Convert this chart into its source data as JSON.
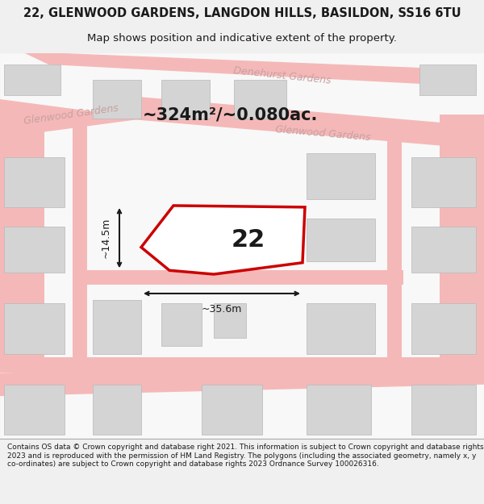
{
  "title_line1": "22, GLENWOOD GARDENS, LANGDON HILLS, BASILDON, SS16 6TU",
  "title_line2": "Map shows position and indicative extent of the property.",
  "area_text": "~324m²/~0.080ac.",
  "width_label": "~35.6m",
  "height_label": "~14.5m",
  "plot_number": "22",
  "footer_text": "Contains OS data © Crown copyright and database right 2021. This information is subject to Crown copyright and database rights 2023 and is reproduced with the permission of HM Land Registry. The polygons (including the associated geometry, namely x, y co-ordinates) are subject to Crown copyright and database rights 2023 Ordnance Survey 100026316.",
  "bg_color": "#f0f0f0",
  "map_bg": "#f8f8f8",
  "road_color": "#f5b8b8",
  "building_color": "#d4d4d4",
  "plot_outline_color": "#cc0000",
  "dim_line_color": "#1a1a1a",
  "text_color": "#1a1a1a",
  "road_label_color": "#c8a0a0",
  "title_color": "#1a1a1a",
  "footer_color": "#1a1a1a",
  "footer_bg": "#ffffff"
}
